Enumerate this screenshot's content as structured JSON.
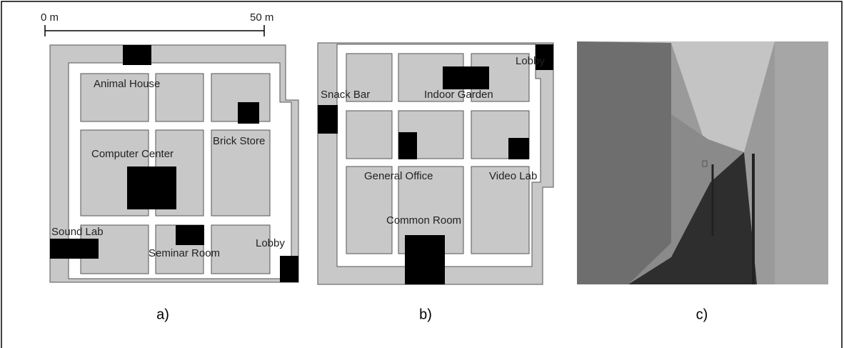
{
  "scale": {
    "start": "0 m",
    "end": "50 m"
  },
  "panels": [
    {
      "label": "a)",
      "rooms": [
        "Animal House",
        "Computer Center",
        "Brick Store",
        "Sound Lab",
        "Seminar Room",
        "Lobby"
      ]
    },
    {
      "label": "b)",
      "rooms": [
        "Snack Bar",
        "Indoor Garden",
        "Lobby",
        "General Office",
        "Video Lab",
        "Common Room"
      ]
    },
    {
      "label": "c)"
    }
  ]
}
